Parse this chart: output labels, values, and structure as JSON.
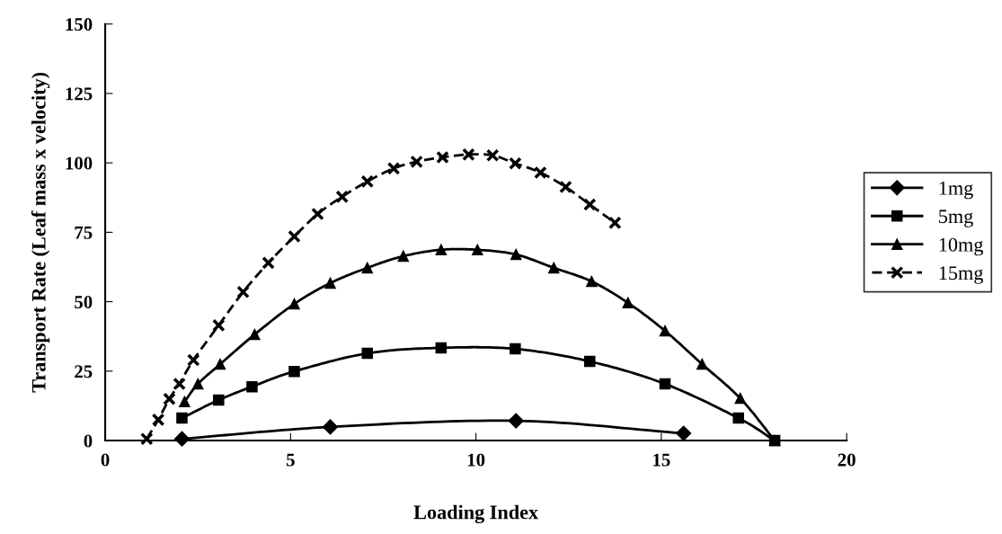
{
  "chart_data": {
    "type": "line",
    "xlabel": "Loading Index",
    "ylabel": "Transport Rate (Leaf mass x velocity)",
    "xlim": [
      0,
      20
    ],
    "xticks": [
      0,
      5,
      10,
      15,
      20
    ],
    "ylim": [
      0,
      150
    ],
    "yticks": [
      0,
      25,
      50,
      75,
      100,
      125,
      150
    ],
    "grid": false,
    "legend": "right",
    "series": [
      {
        "name": "1mg",
        "color": "#000000",
        "marker": "diamond",
        "line_style": "solid",
        "x": [
          2.07,
          6.07,
          11.08,
          15.6
        ],
        "values": [
          0.6,
          4.9,
          7.1,
          2.6
        ]
      },
      {
        "name": "5mg",
        "color": "#000000",
        "marker": "square",
        "line_style": "solid",
        "x": [
          2.07,
          3.06,
          3.96,
          5.1,
          7.07,
          9.06,
          11.06,
          13.07,
          15.1,
          17.08,
          18.06
        ],
        "values": [
          8.1,
          14.6,
          19.4,
          24.9,
          31.4,
          33.4,
          33,
          28.5,
          20.4,
          8.1,
          0
        ]
      },
      {
        "name": "10mg",
        "color": "#000000",
        "marker": "triangle",
        "line_style": "solid",
        "x": [
          2.14,
          2.5,
          3.1,
          4.03,
          5.1,
          6.07,
          7.07,
          8.04,
          9.06,
          10.04,
          11.08,
          12.1,
          13.12,
          14.1,
          15.1,
          16.1,
          17.13,
          18.06
        ],
        "values": [
          14,
          20.4,
          27.5,
          38.2,
          49.2,
          56.7,
          62.2,
          66.4,
          68.7,
          68.7,
          67,
          62.2,
          57.3,
          49.6,
          39.5,
          27.5,
          15.2,
          0
        ]
      },
      {
        "name": "15mg",
        "color": "#000000",
        "marker": "cross",
        "line_style": "dashed",
        "x": [
          1.12,
          1.43,
          1.73,
          2.0,
          2.38,
          3.06,
          3.72,
          4.4,
          5.1,
          5.73,
          6.39,
          7.07,
          7.78,
          8.4,
          9.1,
          9.8,
          10.45,
          11.06,
          11.74,
          12.42,
          13.07,
          13.75
        ],
        "values": [
          0.6,
          7.5,
          15,
          20.4,
          29,
          41.5,
          53.5,
          64,
          73.5,
          81.6,
          87.8,
          93.3,
          98,
          100.4,
          102,
          103,
          102.7,
          99.8,
          96.5,
          91.3,
          85,
          78.4
        ]
      }
    ]
  }
}
